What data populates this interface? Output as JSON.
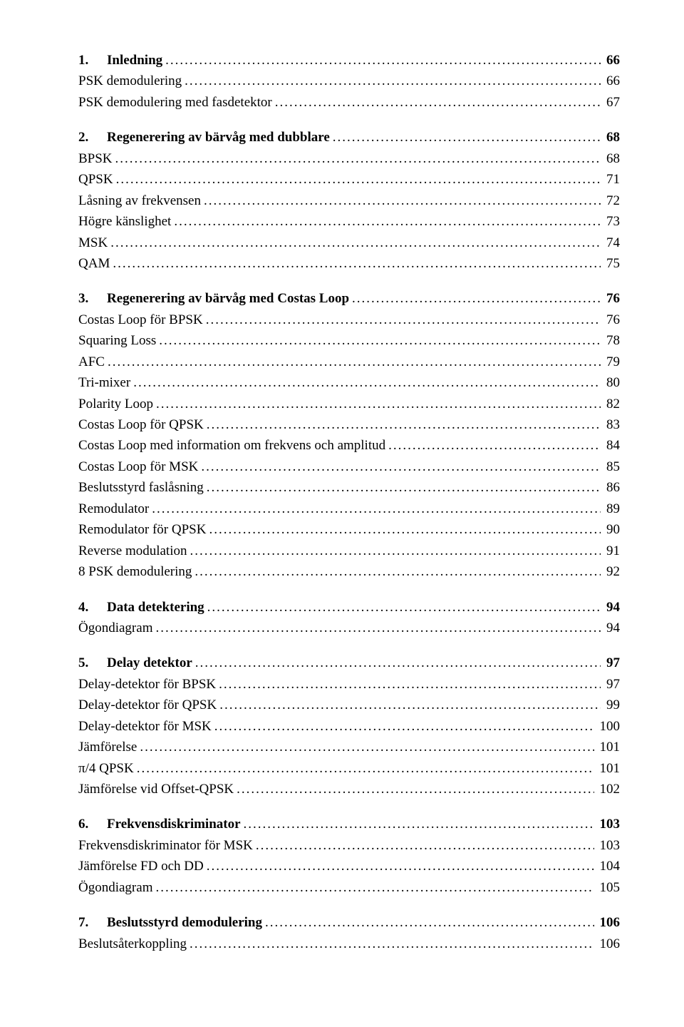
{
  "toc": [
    {
      "type": "heading",
      "num": "1.",
      "label": "Inledning",
      "page": "66"
    },
    {
      "type": "sub",
      "label": "PSK demodulering",
      "page": "66"
    },
    {
      "type": "sub",
      "label": "PSK demodulering med fasdetektor",
      "page": "67"
    },
    {
      "type": "gap"
    },
    {
      "type": "heading",
      "num": "2.",
      "label": "Regenerering av bärvåg med dubblare",
      "page": "68"
    },
    {
      "type": "sub",
      "label": "BPSK",
      "page": "68"
    },
    {
      "type": "sub",
      "label": "QPSK",
      "page": "71"
    },
    {
      "type": "sub",
      "label": "Låsning av frekvensen",
      "page": "72"
    },
    {
      "type": "sub",
      "label": "Högre känslighet",
      "page": "73"
    },
    {
      "type": "sub",
      "label": "MSK",
      "page": "74"
    },
    {
      "type": "sub",
      "label": "QAM",
      "page": "75"
    },
    {
      "type": "gap"
    },
    {
      "type": "heading",
      "num": "3.",
      "label": "Regenerering av bärvåg med  Costas Loop",
      "page": "76"
    },
    {
      "type": "sub",
      "label": "Costas Loop för BPSK",
      "page": "76"
    },
    {
      "type": "sub",
      "label": "Squaring Loss",
      "page": "78"
    },
    {
      "type": "sub",
      "label": "AFC",
      "page": "79"
    },
    {
      "type": "sub",
      "label": "Tri-mixer",
      "page": "80"
    },
    {
      "type": "sub",
      "label": "Polarity Loop",
      "page": "82"
    },
    {
      "type": "sub",
      "label": "Costas Loop för QPSK",
      "page": "83"
    },
    {
      "type": "sub",
      "label": "Costas Loop med information om frekvens och amplitud",
      "page": "84"
    },
    {
      "type": "sub",
      "label": "Costas Loop  för  MSK",
      "page": "85"
    },
    {
      "type": "sub",
      "label": "Beslutsstyrd faslåsning",
      "page": "86"
    },
    {
      "type": "sub",
      "label": "Remodulator",
      "page": "89"
    },
    {
      "type": "sub",
      "label": "Remodulator för  QPSK",
      "page": "90"
    },
    {
      "type": "sub",
      "label": "Reverse modulation",
      "page": "91"
    },
    {
      "type": "sub",
      "label": "8 PSK  demodulering",
      "page": "92"
    },
    {
      "type": "gap"
    },
    {
      "type": "heading",
      "num": "4.",
      "label": "Data detektering",
      "page": "94"
    },
    {
      "type": "sub",
      "label": "Ögondiagram",
      "page": "94"
    },
    {
      "type": "gap"
    },
    {
      "type": "heading",
      "num": "5.",
      "label": "Delay detektor",
      "page": "97"
    },
    {
      "type": "sub",
      "label": "Delay-detektor  för  BPSK",
      "page": "97"
    },
    {
      "type": "sub",
      "label": "Delay-detektor  för  QPSK",
      "page": "99"
    },
    {
      "type": "sub",
      "label": "Delay-detektor  för  MSK",
      "page": "100"
    },
    {
      "type": "sub",
      "label": "Jämförelse",
      "page": "101"
    },
    {
      "type": "sub",
      "label": "π/4 QPSK",
      "page": "101"
    },
    {
      "type": "sub",
      "label": "Jämförelse  vid Offset-QPSK",
      "page": "102"
    },
    {
      "type": "gap"
    },
    {
      "type": "heading",
      "num": "6.",
      "label": "Frekvensdiskriminator",
      "page": "103"
    },
    {
      "type": "sub",
      "label": "Frekvensdiskriminator för MSK",
      "page": "103"
    },
    {
      "type": "sub",
      "label": "Jämförelse   FD och DD",
      "page": "104"
    },
    {
      "type": "sub",
      "label": "Ögondiagram",
      "page": "105"
    },
    {
      "type": "gap"
    },
    {
      "type": "heading",
      "num": "7.",
      "label": "Beslutsstyrd demodulering",
      "page": "106"
    },
    {
      "type": "sub",
      "label": "Beslutsåterkoppling",
      "page": "106"
    }
  ]
}
